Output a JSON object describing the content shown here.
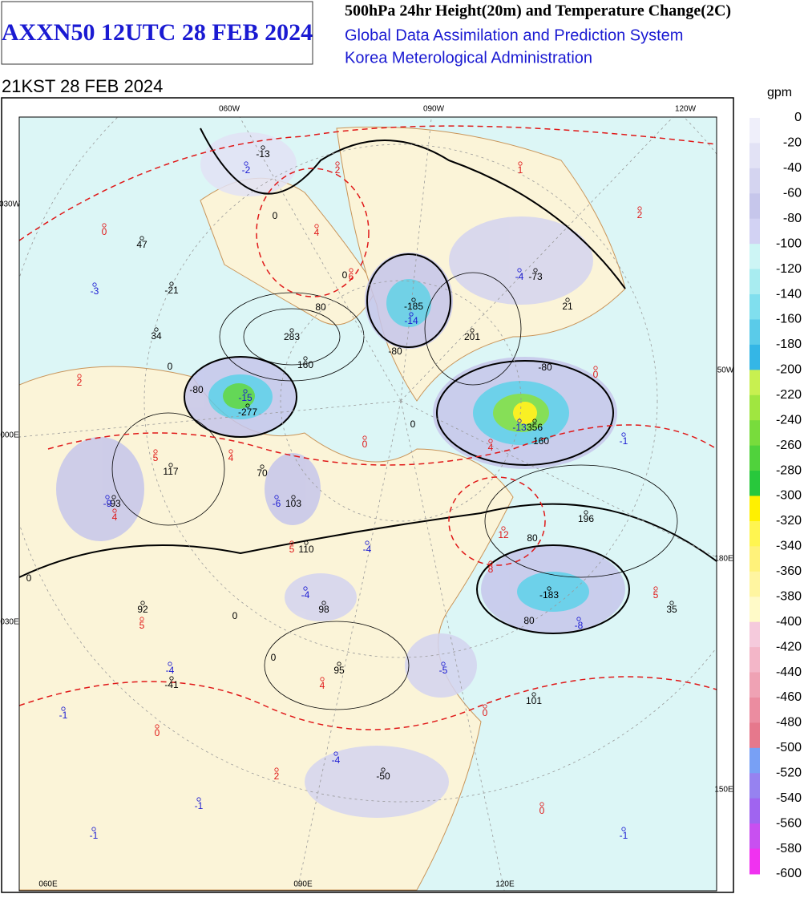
{
  "header": {
    "chart_id": "AXXN50 12UTC 28 FEB 2024",
    "title": "500hPa 24hr Height(20m) and Temperature Change(2C)",
    "system": "Global Data Assimilation and Prediction System",
    "agency": "Korea Meterological Administration",
    "valid_time": "21KST 28 FEB 2024"
  },
  "map": {
    "grid_labels": [
      "060W",
      "090W",
      "120W",
      "030W",
      "000E",
      "030E",
      "50W",
      "180E",
      "150E",
      "060E",
      "090E",
      "120E"
    ],
    "labels": {
      "heights": [
        "-13",
        "47",
        "-21",
        "34",
        "283",
        "160",
        "-277",
        "117",
        "70",
        "-93",
        "103",
        "110",
        "92",
        "98",
        "95",
        "-41",
        "101",
        "-50",
        "35",
        "-183",
        "196",
        "356",
        "-185",
        "201",
        "-73",
        "21"
      ],
      "cold_changes": [
        "-2",
        "-3",
        "-15",
        "-9",
        "-6",
        "-4",
        "-4",
        "-5",
        "-4",
        "-1",
        "-4",
        "-1",
        "-1",
        "-1",
        "-1",
        "-4",
        "-14",
        "-13",
        "-8"
      ],
      "warm_changes": [
        "2",
        "1",
        "2",
        "4",
        "6",
        "2",
        "4",
        "5",
        "4",
        "5",
        "5",
        "4",
        "2",
        "12",
        "8",
        "4",
        "5",
        "0",
        "0",
        "0",
        "0",
        "0",
        "0"
      ],
      "contours": [
        "80",
        "-80",
        "-80",
        "80",
        "80",
        "-80",
        "0",
        "0",
        "0",
        "0",
        "0",
        "0",
        "0",
        "160"
      ]
    }
  },
  "colorbar": {
    "unit": "gpm",
    "ticks": [
      "0",
      "-20",
      "-40",
      "-60",
      "-80",
      "-100",
      "-120",
      "-140",
      "-160",
      "-180",
      "-200",
      "-220",
      "-240",
      "-260",
      "-280",
      "-300",
      "-320",
      "-340",
      "-360",
      "-380",
      "-400",
      "-420",
      "-440",
      "-460",
      "-480",
      "-500",
      "-520",
      "-540",
      "-560",
      "-580",
      "-600"
    ],
    "colors": [
      "#efeffa",
      "#e2e2f5",
      "#d4d4f0",
      "#c6c6eb",
      "#d2d2f3",
      "#cdf5f5",
      "#a8ecf0",
      "#80dfee",
      "#5acbe9",
      "#34b6e6",
      "#c8f050",
      "#a0e640",
      "#78dc3c",
      "#50d23c",
      "#28c83c",
      "#fff000",
      "#fff550",
      "#fff27a",
      "#fff5a0",
      "#fffac8",
      "#f5cadc",
      "#f3b6c8",
      "#ef a2b4",
      "#eb8ca0",
      "#e6788c",
      "#78a0f5",
      "#9682f0",
      "#a064f0",
      "#c850f0",
      "#f032f0"
    ]
  }
}
